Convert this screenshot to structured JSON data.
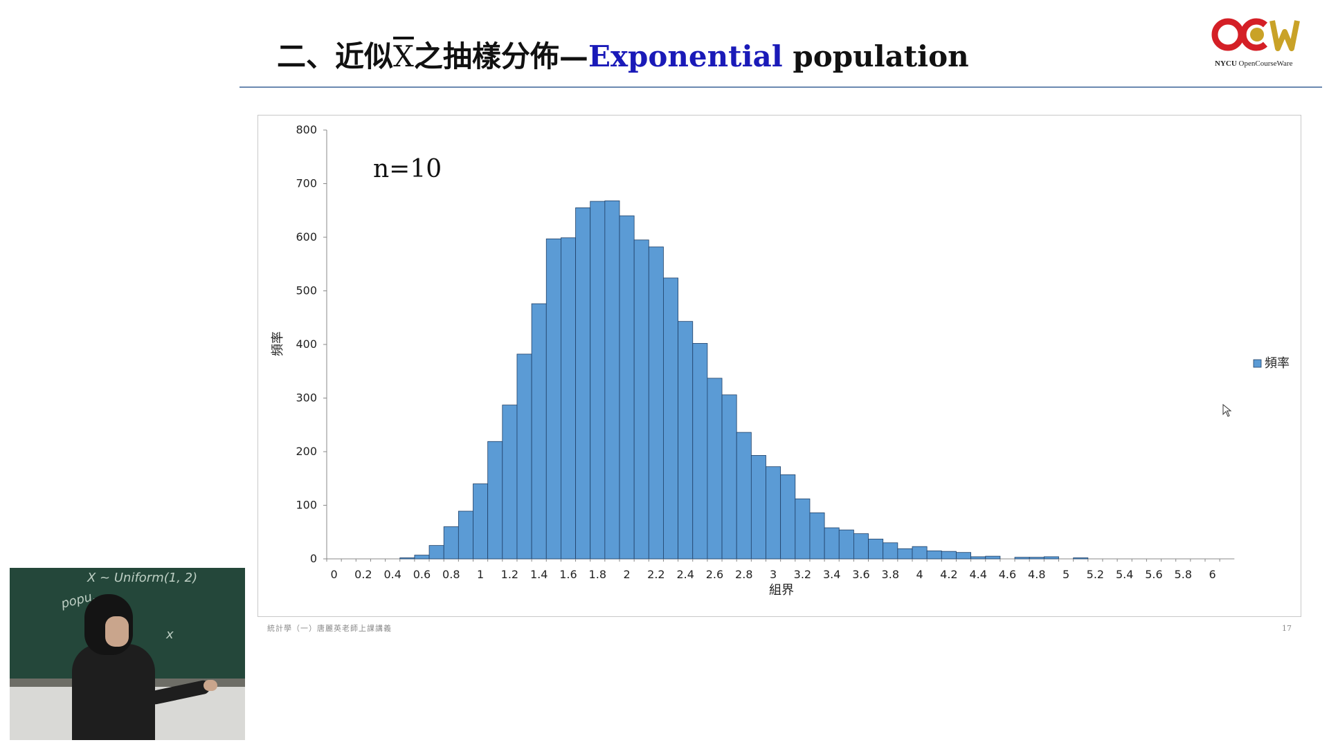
{
  "slide": {
    "title_prefix": "二、近似",
    "title_x": "X",
    "title_mid": "之抽樣分佈—",
    "title_accent": "Exponential",
    "title_suffix": " population",
    "footer_left": "統計學（一）唐麗英老師上課講義",
    "page_number": "17"
  },
  "logo": {
    "caption_bold": "NYCU",
    "caption_rest": " OpenCourseWare",
    "colors": {
      "red": "#d41f26",
      "gold": "#c9a227"
    }
  },
  "webcam": {
    "board_line1": "X ~ Uniform(1, 2)",
    "board_line2": "popu.",
    "board_line3": "x"
  },
  "colors": {
    "bar_fill": "#5b9bd5",
    "bar_stroke": "#1f3f66",
    "title_accent": "#1a1ab8"
  },
  "chart_data": {
    "type": "bar",
    "annotation": "n=10",
    "xlabel": "組界",
    "ylabel": "頻率",
    "legend": {
      "label": "頻率",
      "position": "right"
    },
    "ylim": [
      0,
      800
    ],
    "y_ticks": [
      "0",
      "100",
      "200",
      "300",
      "400",
      "500",
      "600",
      "700",
      "800"
    ],
    "categories": [
      "0",
      "0.1",
      "0.2",
      "0.3",
      "0.4",
      "0.5",
      "0.6",
      "0.7",
      "0.8",
      "0.9",
      "1",
      "1.1",
      "1.2",
      "1.3",
      "1.4",
      "1.5",
      "1.6",
      "1.7",
      "1.8",
      "1.9",
      "2",
      "2.1",
      "2.2",
      "2.3",
      "2.4",
      "2.5",
      "2.6",
      "2.7",
      "2.8",
      "2.9",
      "3",
      "3.1",
      "3.2",
      "3.3",
      "3.4",
      "3.5",
      "3.6",
      "3.7",
      "3.8",
      "3.9",
      "4",
      "4.1",
      "4.2",
      "4.3",
      "4.4",
      "4.5",
      "4.6",
      "4.7",
      "4.8",
      "4.9",
      "5",
      "5.1",
      "5.2",
      "5.3",
      "5.4",
      "5.5",
      "5.6",
      "5.7",
      "5.8",
      "5.9",
      "6",
      "6.1"
    ],
    "x_tick_labels": [
      "0",
      "",
      "0.2",
      "",
      "0.4",
      "",
      "0.6",
      "",
      "0.8",
      "",
      "1",
      "",
      "1.2",
      "",
      "1.4",
      "",
      "1.6",
      "",
      "1.8",
      "",
      "2",
      "",
      "2.2",
      "",
      "2.4",
      "",
      "2.6",
      "",
      "2.8",
      "",
      "3",
      "",
      "3.2",
      "",
      "3.4",
      "",
      "3.6",
      "",
      "3.8",
      "",
      "4",
      "",
      "4.2",
      "",
      "4.4",
      "",
      "4.6",
      "",
      "4.8",
      "",
      "5",
      "",
      "5.2",
      "",
      "5.4",
      "",
      "5.6",
      "",
      "5.8",
      "",
      "6",
      ""
    ],
    "values": [
      0,
      0,
      0,
      0,
      0,
      2,
      7,
      25,
      60,
      89,
      140,
      219,
      287,
      382,
      476,
      597,
      599,
      655,
      667,
      668,
      640,
      595,
      582,
      524,
      443,
      402,
      337,
      306,
      236,
      193,
      172,
      157,
      112,
      86,
      58,
      54,
      47,
      37,
      30,
      19,
      23,
      15,
      14,
      12,
      4,
      5,
      0,
      3,
      3,
      4,
      0,
      2,
      0,
      0,
      0,
      0,
      0,
      0,
      0,
      0,
      0,
      0
    ]
  }
}
